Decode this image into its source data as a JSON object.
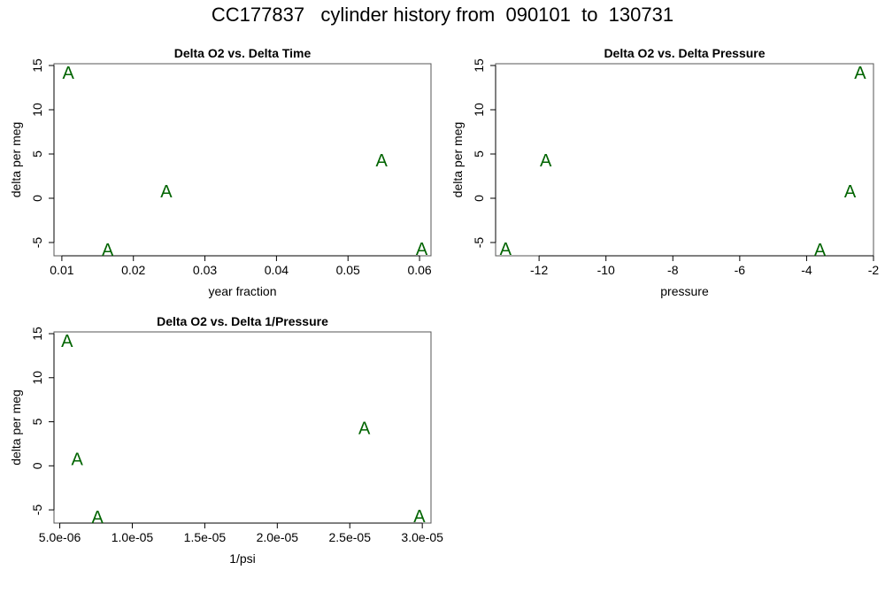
{
  "title": "CC177837   cylinder history from  090101  to  130731",
  "marker_label": "A",
  "marker_color": "#006400",
  "chart_data": [
    {
      "type": "scatter",
      "title": "Delta O2 vs. Delta Time",
      "xlabel": "year fraction",
      "ylabel": "delta per meg",
      "xlim": [
        0.0089,
        0.0616
      ],
      "ylim": [
        -6.5,
        15.2
      ],
      "xticks": [
        0.01,
        0.02,
        0.03,
        0.04,
        0.05,
        0.06
      ],
      "xtick_labels": [
        "0.01",
        "0.02",
        "0.03",
        "0.04",
        "0.05",
        "0.06"
      ],
      "yticks": [
        -5,
        0,
        5,
        10,
        15
      ],
      "ytick_labels": [
        "-5",
        "0",
        "5",
        "10",
        "15"
      ],
      "points": [
        {
          "x": 0.0109,
          "y": 14.2
        },
        {
          "x": 0.0164,
          "y": -5.8
        },
        {
          "x": 0.0246,
          "y": 0.8
        },
        {
          "x": 0.0547,
          "y": 4.3
        },
        {
          "x": 0.0603,
          "y": -5.7
        }
      ]
    },
    {
      "type": "scatter",
      "title": "Delta O2 vs. Delta Pressure",
      "xlabel": "pressure",
      "ylabel": "delta per meg",
      "xlim": [
        -13.3,
        -2.0
      ],
      "ylim": [
        -6.5,
        15.2
      ],
      "xticks": [
        -12,
        -10,
        -8,
        -6,
        -4,
        -2
      ],
      "xtick_labels": [
        "-12",
        "-10",
        "-8",
        "-6",
        "-4",
        "-2"
      ],
      "yticks": [
        -5,
        0,
        5,
        10,
        15
      ],
      "ytick_labels": [
        "-5",
        "0",
        "5",
        "10",
        "15"
      ],
      "points": [
        {
          "x": -13.0,
          "y": -5.7
        },
        {
          "x": -11.8,
          "y": 4.3
        },
        {
          "x": -3.6,
          "y": -5.8
        },
        {
          "x": -2.7,
          "y": 0.8
        },
        {
          "x": -2.4,
          "y": 14.2
        }
      ]
    },
    {
      "type": "scatter",
      "title": "Delta O2 vs. Delta 1/Pressure",
      "xlabel": "1/psi",
      "ylabel": "delta per meg",
      "xlim": [
        4.6e-06,
        3.06e-05
      ],
      "ylim": [
        -6.5,
        15.2
      ],
      "xticks": [
        5e-06,
        1e-05,
        1.5e-05,
        2e-05,
        2.5e-05,
        3e-05
      ],
      "xtick_labels": [
        "5.0e-06",
        "1.0e-05",
        "1.5e-05",
        "2.0e-05",
        "2.5e-05",
        "3.0e-05"
      ],
      "yticks": [
        -5,
        0,
        5,
        10,
        15
      ],
      "ytick_labels": [
        "-5",
        "0",
        "5",
        "10",
        "15"
      ],
      "points": [
        {
          "x": 5.5e-06,
          "y": 14.2
        },
        {
          "x": 6.2e-06,
          "y": 0.8
        },
        {
          "x": 7.6e-06,
          "y": -5.8
        },
        {
          "x": 2.6e-05,
          "y": 4.3
        },
        {
          "x": 2.98e-05,
          "y": -5.7
        }
      ]
    }
  ]
}
